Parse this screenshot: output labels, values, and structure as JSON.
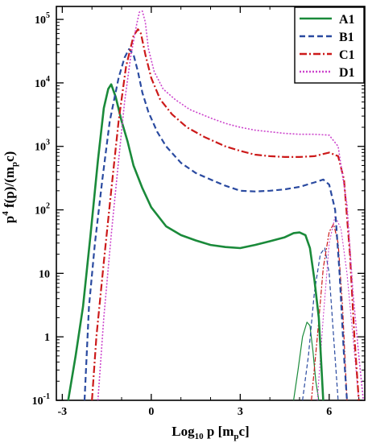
{
  "chart_data": {
    "type": "line",
    "xlabel": {
      "main": "Log",
      "sub": "10",
      "rest": " p [m",
      "sub2": "p",
      "end": "c]"
    },
    "ylabel": {
      "pre": "p",
      "sup": "4",
      "mid": " f(p)/(m",
      "sub": "p",
      "end": "c)"
    },
    "xlim": [
      -3.2,
      7.2
    ],
    "ylim": [
      0.1,
      160000
    ],
    "yscale": "log",
    "grid": false,
    "legend_position": "top-right",
    "x_ticks": [
      -3,
      0,
      3,
      6
    ],
    "x_tick_labels": [
      "-3",
      "0",
      "3",
      "6"
    ],
    "y_ticks": [
      0.1,
      1,
      10,
      100,
      1000,
      10000,
      100000
    ],
    "y_tick_labels": [
      {
        "base": "10",
        "exp": "-1"
      },
      {
        "base": "1",
        "exp": ""
      },
      {
        "base": "10",
        "exp": ""
      },
      {
        "base": "10",
        "exp": "2"
      },
      {
        "base": "10",
        "exp": "3"
      },
      {
        "base": "10",
        "exp": "4"
      },
      {
        "base": "10",
        "exp": "5"
      }
    ],
    "series": [
      {
        "name": "A1",
        "color": "#1a8a3a",
        "dash": "solid",
        "width": 2.6,
        "x": [
          -2.8,
          -2.55,
          -2.3,
          -2.05,
          -1.8,
          -1.6,
          -1.45,
          -1.35,
          -1.2,
          -1.0,
          -0.8,
          -0.6,
          -0.3,
          0.0,
          0.5,
          1.0,
          1.5,
          2.0,
          2.5,
          3.0,
          3.5,
          4.0,
          4.5,
          4.8,
          5.0,
          5.2,
          5.35,
          5.5,
          5.65,
          5.8
        ],
        "y": [
          0.1,
          0.5,
          3,
          40,
          600,
          4000,
          8000,
          9500,
          6000,
          2500,
          1200,
          500,
          220,
          110,
          55,
          40,
          33,
          28,
          26,
          25,
          28,
          32,
          37,
          43,
          44,
          40,
          25,
          8,
          2,
          0.1
        ]
      },
      {
        "name": "B1",
        "color": "#2a4aa0",
        "dash": "7,4",
        "width": 2.2,
        "x": [
          -2.25,
          -2.1,
          -1.9,
          -1.65,
          -1.4,
          -1.1,
          -0.9,
          -0.75,
          -0.6,
          -0.45,
          -0.3,
          -0.1,
          0.2,
          0.5,
          1.0,
          1.5,
          2.0,
          2.5,
          3.0,
          3.5,
          4.0,
          4.5,
          5.0,
          5.5,
          5.8,
          6.0,
          6.2,
          6.35,
          6.5,
          6.6
        ],
        "y": [
          0.1,
          3,
          30,
          300,
          2500,
          12000,
          25000,
          34000,
          28000,
          15000,
          7000,
          3500,
          1700,
          1000,
          550,
          380,
          300,
          240,
          200,
          195,
          200,
          210,
          230,
          270,
          300,
          250,
          100,
          10,
          0.5,
          0.1
        ]
      },
      {
        "name": "C1",
        "color": "#cc1a1a",
        "dash": "9,3,2,3",
        "width": 2.2,
        "x": [
          -2.0,
          -1.85,
          -1.6,
          -1.35,
          -1.1,
          -0.85,
          -0.6,
          -0.45,
          -0.35,
          -0.2,
          0.0,
          0.3,
          0.7,
          1.2,
          1.8,
          2.5,
          3.0,
          3.5,
          4.0,
          4.5,
          5.0,
          5.5,
          6.0,
          6.3,
          6.5,
          6.7,
          6.85,
          7.0
        ],
        "y": [
          0.1,
          1,
          15,
          200,
          2500,
          18000,
          55000,
          70000,
          60000,
          28000,
          12000,
          5500,
          3200,
          2000,
          1400,
          1000,
          850,
          740,
          700,
          680,
          680,
          700,
          800,
          700,
          300,
          20,
          1,
          0.1
        ]
      },
      {
        "name": "D1",
        "color": "#cc44cc",
        "dash": "2,2",
        "width": 1.6,
        "x": [
          -1.8,
          -1.6,
          -1.35,
          -1.1,
          -0.9,
          -0.7,
          -0.5,
          -0.4,
          -0.3,
          -0.2,
          -0.1,
          0.1,
          0.4,
          0.8,
          1.3,
          2.0,
          2.5,
          3.0,
          3.5,
          4.0,
          4.5,
          5.0,
          5.5,
          6.0,
          6.3,
          6.6,
          6.8,
          7.0,
          7.15
        ],
        "y": [
          0.1,
          2,
          40,
          600,
          5000,
          25000,
          80000,
          130000,
          135000,
          90000,
          35000,
          15000,
          8000,
          5500,
          3800,
          2800,
          2300,
          2000,
          1800,
          1700,
          1600,
          1550,
          1550,
          1500,
          1000,
          120,
          5,
          0.5,
          0.1
        ]
      }
    ],
    "secondary_series": [
      {
        "name": "A1",
        "color": "#1a8a3a",
        "dash": "solid",
        "width": 1.2,
        "x": [
          4.8,
          4.95,
          5.1,
          5.25,
          5.35,
          5.45,
          5.55,
          5.65
        ],
        "y": [
          0.1,
          0.3,
          1.0,
          1.7,
          1.5,
          0.6,
          0.2,
          0.1
        ]
      },
      {
        "name": "B1",
        "color": "#2a4aa0",
        "dash": "5,3",
        "width": 1.2,
        "x": [
          5.1,
          5.3,
          5.5,
          5.7,
          5.85,
          6.0,
          6.15,
          6.3
        ],
        "y": [
          0.1,
          0.5,
          5,
          20,
          25,
          10,
          1,
          0.1
        ]
      },
      {
        "name": "C1",
        "color": "#cc1a1a",
        "dash": "6,2,2,2",
        "width": 1.2,
        "x": [
          5.4,
          5.6,
          5.8,
          6.0,
          6.15,
          6.3,
          6.45,
          6.6
        ],
        "y": [
          0.1,
          1,
          12,
          45,
          60,
          30,
          3,
          0.1
        ]
      },
      {
        "name": "D1",
        "color": "#cc44cc",
        "dash": "2,2",
        "width": 1.1,
        "x": [
          5.6,
          5.8,
          6.0,
          6.2,
          6.4,
          6.6,
          6.8,
          7.0
        ],
        "y": [
          0.1,
          2,
          30,
          80,
          50,
          10,
          1,
          0.1
        ]
      }
    ],
    "legend": [
      {
        "label": "A1",
        "color": "#1a8a3a",
        "dash": "solid"
      },
      {
        "label": "B1",
        "color": "#2a4aa0",
        "dash": "7,4"
      },
      {
        "label": "C1",
        "color": "#cc1a1a",
        "dash": "9,3,2,3"
      },
      {
        "label": "D1",
        "color": "#cc44cc",
        "dash": "2,2"
      }
    ]
  }
}
